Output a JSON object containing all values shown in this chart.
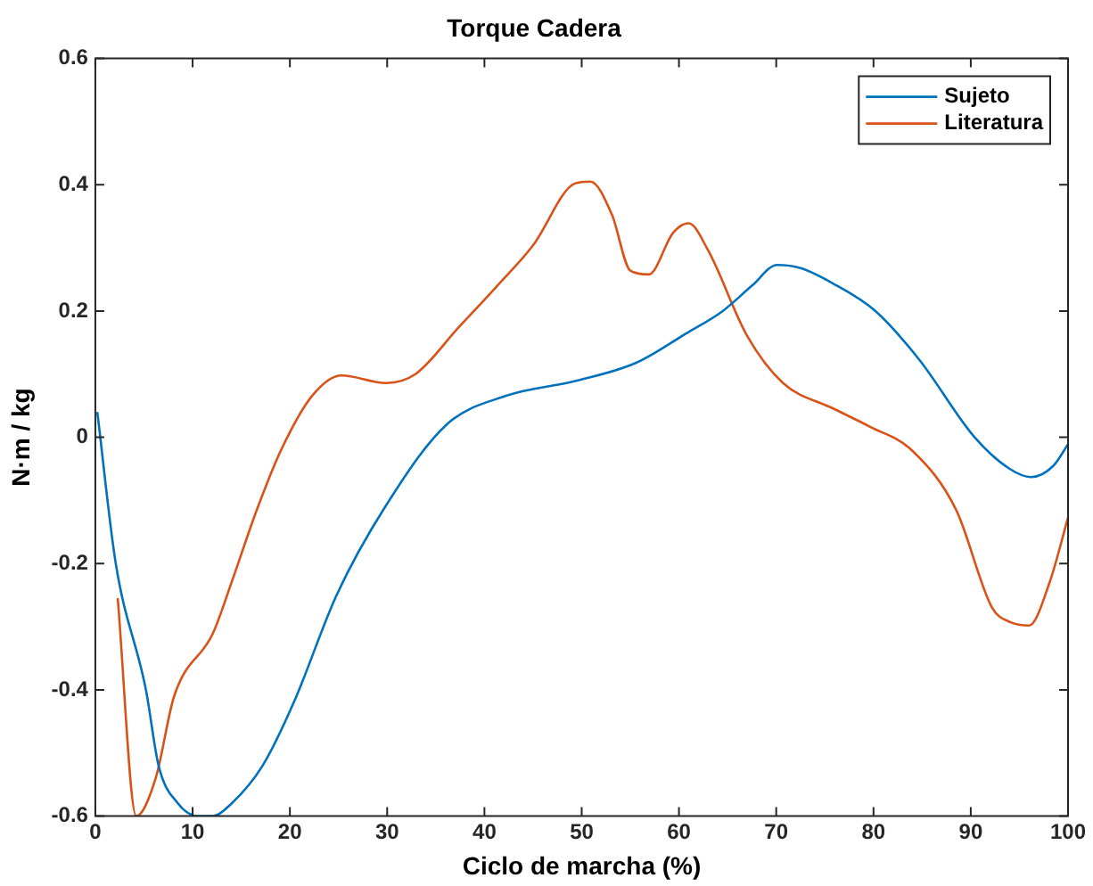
{
  "chart_data": {
    "type": "line",
    "title": "Torque Cadera",
    "xlabel": "Ciclo de marcha (%)",
    "ylabel": "N·m / kg",
    "xlim": [
      0,
      100
    ],
    "xticks": [
      0,
      10,
      20,
      30,
      40,
      50,
      60,
      70,
      80,
      90,
      100
    ],
    "ylim": [
      -0.6,
      0.6
    ],
    "yticks": [
      -0.6,
      -0.4,
      -0.2,
      0,
      0.2,
      0.4,
      0.6
    ],
    "grid": false,
    "legend": "top right",
    "marker": "none",
    "line_style": "solid",
    "series": [
      {
        "name": "Sujeto",
        "color": "#0072bd",
        "x": [
          0.2,
          2.1,
          5.2,
          6.5,
          8.5,
          10.6,
          12,
          14,
          17.2,
          20.4,
          24.8,
          29.8,
          36.1,
          42.3,
          49.3,
          55.6,
          60.7,
          64.5,
          67.5,
          70.1,
          72.5,
          75.8,
          80.2,
          84.7,
          90.4,
          94,
          96.2,
          98.5,
          100
        ],
        "values": [
          0.04,
          -0.2,
          -0.4,
          -0.52,
          -0.58,
          -0.6,
          -0.6,
          -0.58,
          -0.52,
          -0.42,
          -0.25,
          -0.11,
          0.02,
          0.066,
          0.089,
          0.118,
          0.164,
          0.2,
          0.24,
          0.273,
          0.268,
          0.244,
          0.2,
          0.123,
          0,
          -0.05,
          -0.063,
          -0.045,
          -0.011
        ]
      },
      {
        "name": "Literatura",
        "color": "#d95319",
        "x": [
          2.3,
          4.2,
          6.2,
          8.1,
          12.1,
          14,
          16.6,
          19.1,
          22.3,
          25.3,
          29.9,
          32.9,
          37.4,
          41.2,
          45,
          49.3,
          50.9,
          53.1,
          55,
          56.9,
          59.4,
          61,
          63,
          67,
          70.7,
          75.8,
          79.6,
          83.9,
          88.5,
          92.2,
          94.1,
          96,
          98.1,
          100
        ],
        "values": [
          -0.255,
          -0.6,
          -0.54,
          -0.41,
          -0.31,
          -0.23,
          -0.115,
          -0.02,
          0.066,
          0.098,
          0.086,
          0.1,
          0.175,
          0.238,
          0.304,
          0.402,
          0.405,
          0.353,
          0.264,
          0.258,
          0.324,
          0.339,
          0.296,
          0.161,
          0.086,
          0.046,
          0.017,
          -0.02,
          -0.115,
          -0.27,
          -0.293,
          -0.298,
          -0.23,
          -0.127
        ]
      }
    ]
  }
}
